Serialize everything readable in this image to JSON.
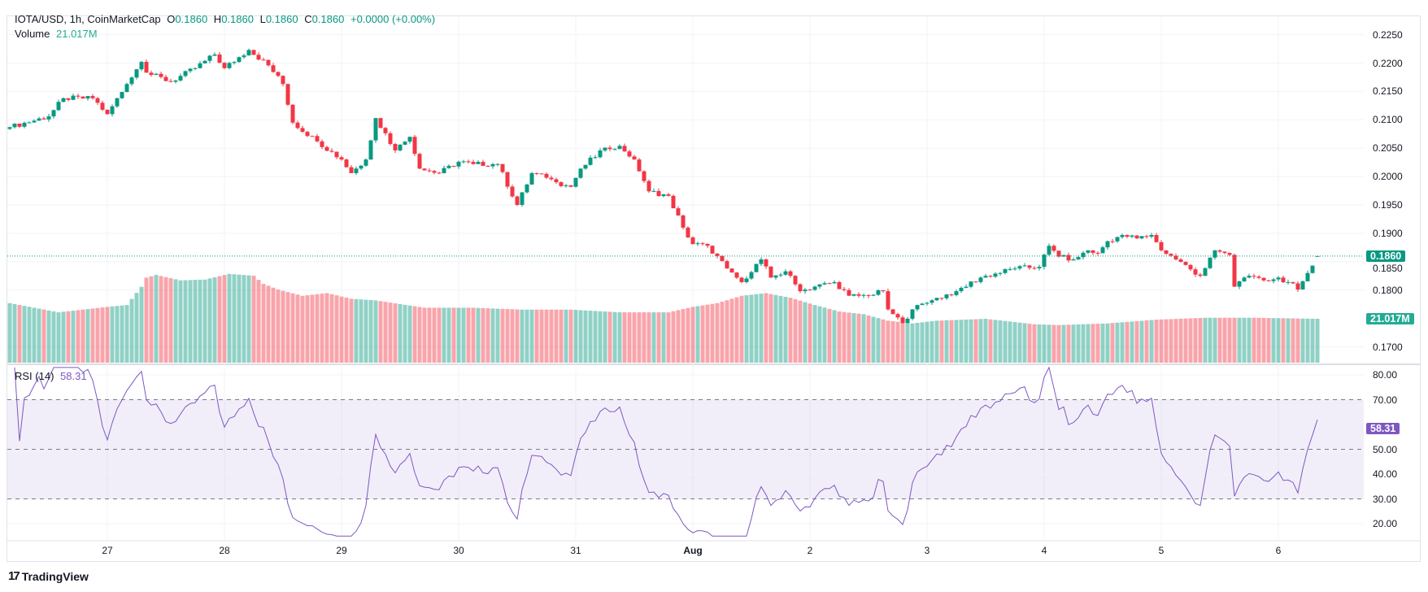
{
  "header": {
    "symbol": "IOTA/USD, 1h, CoinMarketCap",
    "o_label": "O",
    "o_value": "0.1860",
    "h_label": "H",
    "h_value": "0.1860",
    "l_label": "L",
    "l_value": "0.1860",
    "c_label": "C",
    "c_value": "0.1860",
    "change": "+0.0000 (+0.00%)",
    "volume_label": "Volume",
    "volume_value": "21.017M"
  },
  "rsi_header": {
    "label": "RSI (14)",
    "value": "58.31"
  },
  "badges": {
    "price": "0.1860",
    "volume": "21.017M",
    "rsi": "58.31"
  },
  "footer": {
    "brand": "TradingView"
  },
  "colors": {
    "up": "#089981",
    "down": "#f23645",
    "rsi": "#7e57c2",
    "volume_badge": "#22ab94"
  },
  "chart_data": {
    "type": "candlestick",
    "title": "IOTA/USD, 1h, CoinMarketCap",
    "candle_count": 269,
    "price_ticks": [
      "0.2250",
      "0.2200",
      "0.2150",
      "0.2100",
      "0.2050",
      "0.2000",
      "0.1950",
      "0.1900",
      "0.1850",
      "0.1800",
      "0.1700"
    ],
    "price_range": [
      0.1665,
      0.2275
    ],
    "last_price": 0.186,
    "close_keypoints": [
      [
        0,
        0.2087
      ],
      [
        8,
        0.2106
      ],
      [
        11,
        0.2138
      ],
      [
        17,
        0.2138
      ],
      [
        20,
        0.211
      ],
      [
        24,
        0.2163
      ],
      [
        27,
        0.2202
      ],
      [
        28,
        0.2183
      ],
      [
        33,
        0.2167
      ],
      [
        38,
        0.2191
      ],
      [
        42,
        0.2215
      ],
      [
        44,
        0.2191
      ],
      [
        49,
        0.2223
      ],
      [
        53,
        0.2196
      ],
      [
        56,
        0.2163
      ],
      [
        58,
        0.2095
      ],
      [
        63,
        0.2062
      ],
      [
        68,
        0.203
      ],
      [
        70,
        0.2006
      ],
      [
        73,
        0.203
      ],
      [
        75,
        0.2103
      ],
      [
        79,
        0.2046
      ],
      [
        82,
        0.207
      ],
      [
        84,
        0.2014
      ],
      [
        88,
        0.2006
      ],
      [
        92,
        0.2026
      ],
      [
        95,
        0.2022
      ],
      [
        100,
        0.2022
      ],
      [
        104,
        0.195
      ],
      [
        107,
        0.2006
      ],
      [
        110,
        0.1998
      ],
      [
        112,
        0.199
      ],
      [
        115,
        0.1982
      ],
      [
        117,
        0.2014
      ],
      [
        122,
        0.2051
      ],
      [
        125,
        0.2054
      ],
      [
        128,
        0.203
      ],
      [
        131,
        0.1974
      ],
      [
        135,
        0.1966
      ],
      [
        138,
        0.191
      ],
      [
        140,
        0.1881
      ],
      [
        143,
        0.1878
      ],
      [
        147,
        0.1838
      ],
      [
        150,
        0.1814
      ],
      [
        153,
        0.1846
      ],
      [
        154,
        0.1854
      ],
      [
        156,
        0.1822
      ],
      [
        159,
        0.1833
      ],
      [
        162,
        0.1798
      ],
      [
        165,
        0.1806
      ],
      [
        169,
        0.1814
      ],
      [
        172,
        0.179
      ],
      [
        176,
        0.179
      ],
      [
        179,
        0.1798
      ],
      [
        180,
        0.1766
      ],
      [
        183,
        0.1742
      ],
      [
        185,
        0.1766
      ],
      [
        189,
        0.1782
      ],
      [
        194,
        0.1798
      ],
      [
        199,
        0.1822
      ],
      [
        206,
        0.1838
      ],
      [
        211,
        0.1841
      ],
      [
        213,
        0.1878
      ],
      [
        215,
        0.1859
      ],
      [
        218,
        0.1854
      ],
      [
        221,
        0.187
      ],
      [
        223,
        0.1865
      ],
      [
        225,
        0.1886
      ],
      [
        228,
        0.1897
      ],
      [
        231,
        0.1891
      ],
      [
        234,
        0.1897
      ],
      [
        236,
        0.187
      ],
      [
        239,
        0.1854
      ],
      [
        244,
        0.1825
      ],
      [
        247,
        0.187
      ],
      [
        250,
        0.1862
      ],
      [
        251,
        0.1806
      ],
      [
        253,
        0.1822
      ],
      [
        257,
        0.1817
      ],
      [
        260,
        0.1822
      ],
      [
        262,
        0.1814
      ],
      [
        264,
        0.1801
      ],
      [
        266,
        0.183
      ],
      [
        267,
        0.1843
      ],
      [
        268,
        0.186
      ]
    ],
    "volume_keypoints_millions": [
      [
        0,
        28.5
      ],
      [
        10,
        24.1
      ],
      [
        20,
        26.7
      ],
      [
        24,
        27.6
      ],
      [
        27,
        36.3
      ],
      [
        28,
        40.7
      ],
      [
        30,
        42.0
      ],
      [
        35,
        39.4
      ],
      [
        40,
        39.8
      ],
      [
        45,
        42.5
      ],
      [
        50,
        41.6
      ],
      [
        52,
        37.7
      ],
      [
        55,
        35.0
      ],
      [
        60,
        32.0
      ],
      [
        65,
        33.3
      ],
      [
        70,
        30.6
      ],
      [
        75,
        29.8
      ],
      [
        85,
        26.3
      ],
      [
        95,
        26.3
      ],
      [
        105,
        25.4
      ],
      [
        115,
        25.4
      ],
      [
        125,
        24.1
      ],
      [
        135,
        24.1
      ],
      [
        140,
        26.7
      ],
      [
        145,
        28.5
      ],
      [
        150,
        32.0
      ],
      [
        155,
        33.3
      ],
      [
        160,
        31.1
      ],
      [
        165,
        27.6
      ],
      [
        170,
        24.5
      ],
      [
        175,
        23.2
      ],
      [
        180,
        20.1
      ],
      [
        185,
        18.8
      ],
      [
        190,
        20.1
      ],
      [
        200,
        21.0
      ],
      [
        210,
        18.4
      ],
      [
        215,
        18.0
      ],
      [
        225,
        18.8
      ],
      [
        235,
        20.6
      ],
      [
        245,
        21.5
      ],
      [
        255,
        21.5
      ],
      [
        268,
        21.017
      ]
    ],
    "rsi": {
      "period": 14,
      "ticks": [
        "80.00",
        "70.00",
        "50.00",
        "40.00",
        "30.00",
        "20.00"
      ],
      "range": [
        14,
        84
      ],
      "bands": [
        30,
        50,
        70
      ],
      "last": 58.31
    },
    "x_labels": [
      "27",
      "28",
      "29",
      "30",
      "31",
      "Aug",
      "2",
      "3",
      "4",
      "5",
      "6"
    ],
    "x_first_label_candle": 20,
    "candles_per_day": 24
  }
}
